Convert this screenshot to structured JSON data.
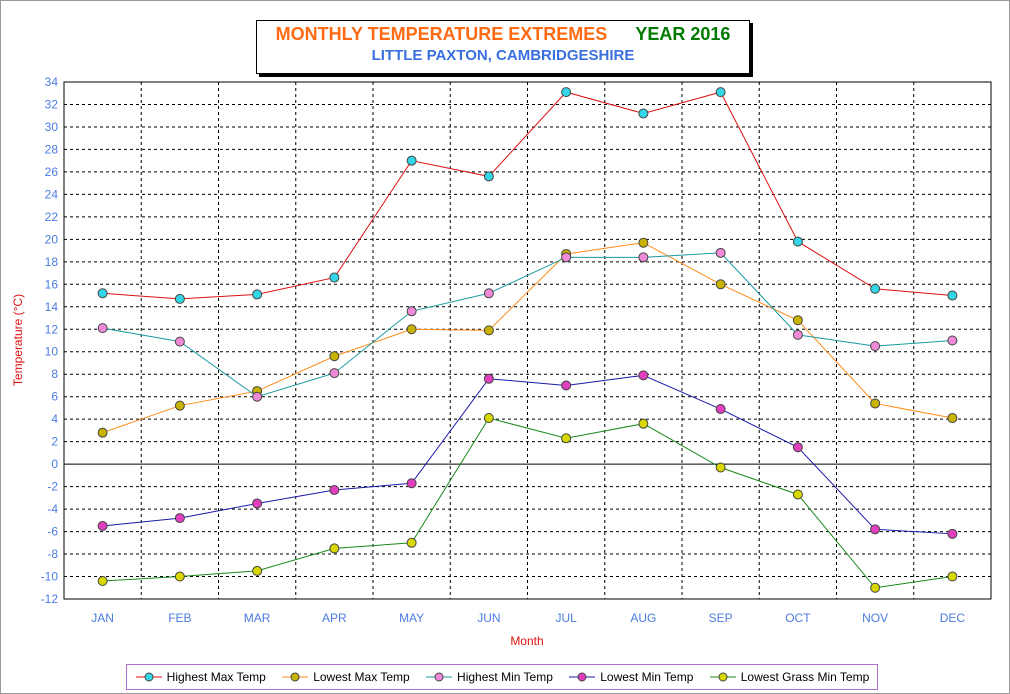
{
  "title": {
    "main": "MONTHLY TEMPERATURE EXTREMES",
    "year": "YEAR  2016",
    "subtitle": "LITTLE PAXTON, CAMBRIDGESHIRE"
  },
  "chart_data": {
    "type": "line",
    "title": "MONTHLY TEMPERATURE EXTREMES   YEAR 2016",
    "subtitle": "LITTLE PAXTON, CAMBRIDGESHIRE",
    "xlabel": "Month",
    "ylabel": "Temperature (°C)",
    "ylim": [
      -12,
      34
    ],
    "ytick_step": 2,
    "grid": true,
    "legend_position": "bottom",
    "categories": [
      "JAN",
      "FEB",
      "MAR",
      "APR",
      "MAY",
      "JUN",
      "JUL",
      "AUG",
      "SEP",
      "OCT",
      "NOV",
      "DEC"
    ],
    "series": [
      {
        "name": "Highest Max Temp",
        "line_color": "#dd1010",
        "marker_color": "#33d6e6",
        "values": [
          15.2,
          14.7,
          15.1,
          16.6,
          27.0,
          25.6,
          33.1,
          31.2,
          33.1,
          19.8,
          15.6,
          15.0
        ]
      },
      {
        "name": "Lowest Max Temp",
        "line_color": "#ff8c1a",
        "marker_color": "#c8b400",
        "values": [
          2.8,
          5.2,
          6.5,
          9.6,
          12.0,
          11.9,
          18.7,
          19.7,
          16.0,
          12.8,
          5.4,
          4.1
        ]
      },
      {
        "name": "Highest Min Temp",
        "line_color": "#1a9aa0",
        "marker_color": "#f08ad8",
        "values": [
          12.1,
          10.9,
          6.0,
          8.1,
          13.6,
          15.2,
          18.4,
          18.4,
          18.8,
          11.5,
          10.5,
          11.0
        ]
      },
      {
        "name": "Lowest Min Temp",
        "line_color": "#1a1aa8",
        "marker_color": "#e040c0",
        "values": [
          -5.5,
          -4.8,
          -3.5,
          -2.3,
          -1.7,
          7.6,
          7.0,
          7.9,
          4.9,
          1.5,
          -5.8,
          -6.2
        ]
      },
      {
        "name": "Lowest Grass Min Temp",
        "line_color": "#1a8a1a",
        "marker_color": "#d8d800",
        "values": [
          -10.4,
          -10.0,
          -9.5,
          -7.5,
          -7.0,
          4.1,
          2.3,
          3.6,
          -0.3,
          -2.7,
          -11.0,
          -10.0
        ]
      }
    ]
  }
}
